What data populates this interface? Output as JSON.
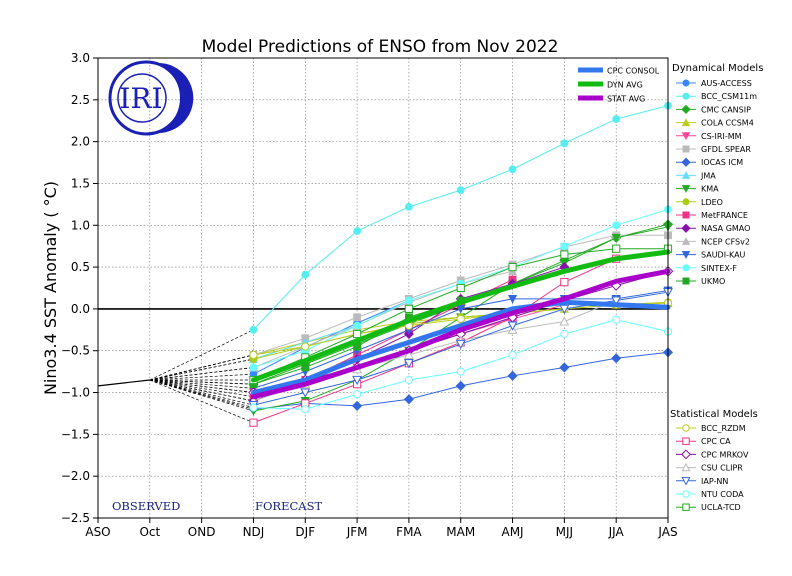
{
  "chart_data": {
    "type": "line",
    "title": "Model Predictions of ENSO from Nov 2022",
    "xlabel": "",
    "ylabel": "Nino3.4 SST Anomaly ( °C)",
    "categories": [
      "ASO",
      "Oct",
      "OND",
      "NDJ",
      "DJF",
      "JFM",
      "FMA",
      "MAM",
      "AMJ",
      "MJJ",
      "JJA",
      "JAS"
    ],
    "ylim": [
      -2.5,
      3.0
    ],
    "yticks": [
      -2.5,
      -2.0,
      -1.5,
      -1.0,
      -0.5,
      0.0,
      0.5,
      1.0,
      1.5,
      2.0,
      2.5,
      3.0
    ],
    "ytick_labels": [
      "−2.5",
      "−2.0",
      "−1.5",
      "−1.0",
      "−0.5",
      "0.0",
      "0.5",
      "1.0",
      "1.5",
      "2.0",
      "2.5",
      "3.0"
    ],
    "grid": true,
    "observed_label": "OBSERVED",
    "forecast_label": "FORECAST",
    "logo_text": "IRI",
    "observed": [
      -0.92,
      -0.85
    ],
    "avg_series": [
      {
        "name": "CPC CONSOL",
        "color": "#3377ee",
        "values": [
          null,
          null,
          null,
          -1.0,
          -0.85,
          -0.6,
          -0.4,
          -0.2,
          0.0,
          0.08,
          0.05,
          0.02
        ]
      },
      {
        "name": "DYN AVG",
        "color": "#11bb11",
        "values": [
          null,
          null,
          null,
          -0.85,
          -0.62,
          -0.38,
          -0.14,
          0.08,
          0.27,
          0.45,
          0.6,
          0.68
        ]
      },
      {
        "name": "STAT AVG",
        "color": "#aa00cc",
        "values": [
          null,
          null,
          null,
          -1.05,
          -0.9,
          -0.7,
          -0.5,
          -0.25,
          -0.05,
          0.12,
          0.33,
          0.45
        ]
      }
    ],
    "dynamical_title": "Dynamical Models",
    "dynamical_series": [
      {
        "name": "AUS-ACCESS",
        "color": "#3a86ff",
        "marker": "circle",
        "filled": true,
        "values": [
          null,
          null,
          null,
          -0.78,
          -0.46,
          -0.17,
          0.1,
          null,
          null,
          null,
          null,
          null
        ]
      },
      {
        "name": "BCC_CSM11m",
        "color": "#55eeee",
        "marker": "circle",
        "filled": true,
        "values": [
          null,
          null,
          null,
          -0.25,
          0.41,
          0.93,
          1.22,
          1.42,
          1.67,
          1.98,
          2.27,
          2.43
        ]
      },
      {
        "name": "CMC CANSIP",
        "color": "#22aa22",
        "marker": "diamond",
        "filled": true,
        "values": [
          null,
          null,
          null,
          -0.9,
          -0.66,
          -0.42,
          -0.18,
          0.05,
          0.3,
          0.58,
          0.85,
          1.01
        ]
      },
      {
        "name": "COLA CCSM4",
        "color": "#bbcc22",
        "marker": "triangle",
        "filled": true,
        "values": [
          null,
          null,
          null,
          -0.55,
          -0.4,
          -0.25,
          -0.15,
          -0.1,
          -0.05,
          0.0,
          0.05,
          0.07
        ]
      },
      {
        "name": "CS-IRI-MM",
        "color": "#ff4499",
        "marker": "triangle-down",
        "filled": true,
        "values": [
          null,
          null,
          null,
          -1.0,
          -0.9,
          -0.7,
          -0.5,
          -0.3,
          -0.12,
          0.05,
          null,
          null
        ]
      },
      {
        "name": "GFDL SPEAR",
        "color": "#bbbbbb",
        "marker": "square",
        "filled": true,
        "values": [
          null,
          null,
          null,
          -0.55,
          -0.35,
          -0.1,
          0.12,
          0.34,
          0.53,
          0.74,
          0.88,
          0.88
        ]
      },
      {
        "name": "IOCAS ICM",
        "color": "#3366dd",
        "marker": "diamond",
        "filled": true,
        "values": [
          null,
          null,
          null,
          -1.2,
          -1.13,
          -1.16,
          -1.08,
          -0.92,
          -0.8,
          -0.7,
          -0.59,
          -0.52
        ]
      },
      {
        "name": "JMA",
        "color": "#66ddff",
        "marker": "triangle",
        "filled": true,
        "values": [
          null,
          null,
          null,
          -0.6,
          -0.4,
          -0.2,
          null,
          null,
          null,
          null,
          null,
          null
        ]
      },
      {
        "name": "KMA",
        "color": "#22aa22",
        "marker": "triangle-down",
        "filled": true,
        "values": [
          null,
          null,
          null,
          -1.22,
          -1.1,
          -0.85,
          -0.5,
          -0.1,
          0.3,
          0.55,
          0.85,
          0.98
        ]
      },
      {
        "name": "LDEO",
        "color": "#aacc11",
        "marker": "circle",
        "filled": true,
        "values": [
          null,
          null,
          null,
          -0.6,
          -0.45,
          -0.3,
          -0.18,
          -0.1,
          -0.05,
          0.0,
          0.05,
          0.08
        ]
      },
      {
        "name": "MetFRANCE",
        "color": "#ee3388",
        "marker": "square",
        "filled": true,
        "values": [
          null,
          null,
          null,
          -1.05,
          -0.85,
          -0.55,
          -0.25,
          0.05,
          0.35,
          null,
          null,
          null
        ]
      },
      {
        "name": "NASA GMAO",
        "color": "#8811aa",
        "marker": "diamond",
        "filled": true,
        "values": [
          null,
          null,
          null,
          -1.1,
          -0.88,
          -0.6,
          -0.3,
          0.12,
          0.3,
          0.5,
          null,
          null
        ]
      },
      {
        "name": "NCEP CFSv2",
        "color": "#bbbbbb",
        "marker": "triangle",
        "filled": true,
        "values": [
          null,
          null,
          null,
          -0.7,
          -0.45,
          -0.2,
          0.08,
          0.3,
          0.45,
          null,
          null,
          null
        ]
      },
      {
        "name": "SAUDI-KAU",
        "color": "#3366dd",
        "marker": "triangle-down",
        "filled": true,
        "values": [
          null,
          null,
          null,
          -0.95,
          -0.75,
          -0.5,
          -0.25,
          0.0,
          0.12,
          0.12,
          0.12,
          0.22
        ]
      },
      {
        "name": "SINTEX-F",
        "color": "#66ffff",
        "marker": "circle",
        "filled": true,
        "values": [
          null,
          null,
          null,
          -0.7,
          -0.5,
          -0.2,
          0.1,
          0.3,
          0.5,
          0.75,
          1.0,
          1.19
        ]
      },
      {
        "name": "UKMO",
        "color": "#22aa22",
        "marker": "square",
        "filled": true,
        "values": [
          null,
          null,
          null,
          -0.9,
          -0.7,
          -0.45,
          -0.1,
          0.1,
          null,
          null,
          null,
          null
        ]
      }
    ],
    "statistical_title": "Statistical Models",
    "statistical_series": [
      {
        "name": "BCC_RZDM",
        "color": "#bbcc22",
        "marker": "circle",
        "filled": false,
        "values": [
          null,
          null,
          null,
          -0.55,
          -0.45,
          -0.3,
          -0.2,
          -0.12,
          -0.05,
          0.0,
          0.05,
          0.07
        ]
      },
      {
        "name": "CPC CA",
        "color": "#ee3388",
        "marker": "square",
        "filled": false,
        "values": [
          null,
          null,
          null,
          -1.36,
          -1.13,
          -0.9,
          -0.65,
          -0.4,
          -0.1,
          0.32,
          0.6,
          null
        ]
      },
      {
        "name": "CPC MRKOV",
        "color": "#8811aa",
        "marker": "diamond",
        "filled": false,
        "values": [
          null,
          null,
          null,
          -1.0,
          -0.85,
          -0.7,
          -0.5,
          -0.3,
          -0.1,
          0.1,
          0.28,
          0.45
        ]
      },
      {
        "name": "CSU CLIPR",
        "color": "#bbbbbb",
        "marker": "triangle",
        "filled": false,
        "values": [
          null,
          null,
          null,
          -1.1,
          -0.9,
          -0.72,
          -0.55,
          -0.38,
          -0.25,
          -0.15,
          0.1,
          null
        ]
      },
      {
        "name": "IAP-NN",
        "color": "#3366dd",
        "marker": "triangle-down",
        "filled": false,
        "values": [
          null,
          null,
          null,
          -1.15,
          -1.0,
          -0.85,
          -0.65,
          -0.42,
          -0.2,
          0.0,
          0.1,
          0.2
        ]
      },
      {
        "name": "NTU CODA",
        "color": "#66ffff",
        "marker": "circle",
        "filled": false,
        "values": [
          null,
          null,
          null,
          -1.18,
          -1.2,
          -1.02,
          -0.85,
          -0.75,
          -0.55,
          -0.3,
          -0.13,
          -0.27
        ]
      },
      {
        "name": "UCLA-TCD",
        "color": "#22aa22",
        "marker": "square",
        "filled": false,
        "values": [
          null,
          null,
          null,
          -0.85,
          -0.58,
          -0.3,
          0.0,
          0.25,
          0.5,
          0.65,
          0.72,
          0.72
        ]
      }
    ]
  }
}
